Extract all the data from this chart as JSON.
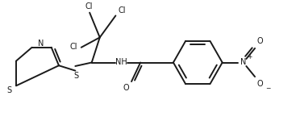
{
  "bg_color": "#ffffff",
  "line_color": "#1a1a1a",
  "line_width": 1.4,
  "font_size": 7.0,
  "fig_width": 3.72,
  "fig_height": 1.55,
  "xlim": [
    0,
    10
  ],
  "ylim": [
    0,
    4.1
  ]
}
